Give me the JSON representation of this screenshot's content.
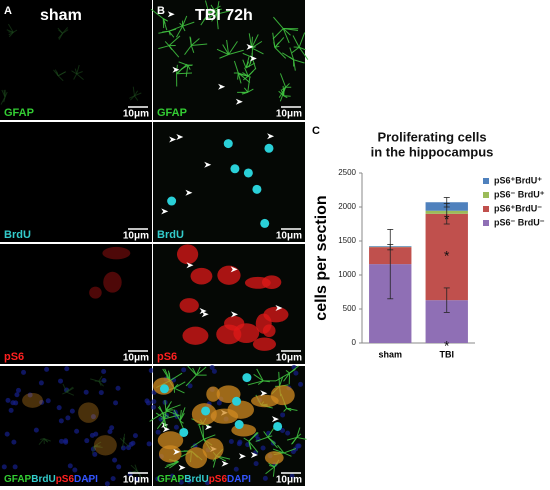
{
  "panels": {
    "A": {
      "label": "A",
      "title": "sham"
    },
    "B": {
      "label": "B",
      "title": "TBI 72h"
    },
    "channels": [
      "GFAP",
      "BrdU",
      "pS6"
    ],
    "merged": [
      {
        "text": "GFAP",
        "color": "#33cc33"
      },
      {
        "text": "BrdU",
        "color": "#33cccc"
      },
      {
        "text": "pS6",
        "color": "#ff2020"
      },
      {
        "text": "DAPI",
        "color": "#3355ff"
      }
    ],
    "channel_colors": [
      "#33cc33",
      "#33cccc",
      "#ff2020"
    ],
    "scale_bar": "10μm"
  },
  "chart_data": {
    "type": "stacked-bar",
    "label": "C",
    "title": [
      "Proliferating cells",
      "in the hippocampus"
    ],
    "ylabel": "cells per section",
    "categories": [
      "sham",
      "TBI"
    ],
    "series": [
      {
        "name": "pS6⁻ BrdU⁻",
        "color": "#8f6fb5",
        "values": [
          1160,
          630
        ],
        "errors": [
          510,
          180
        ],
        "markers": [
          null,
          "*"
        ]
      },
      {
        "name": "pS6⁺BrdU⁻",
        "color": "#c0504d",
        "values": [
          250,
          1270
        ],
        "errors": [
          40,
          150
        ],
        "markers": [
          null,
          "*"
        ]
      },
      {
        "name": "pS6⁻ BrdU⁺",
        "color": "#9bbb59",
        "values": [
          5,
          45
        ],
        "errors": [
          null,
          null
        ],
        "markers": [
          null,
          "*"
        ]
      },
      {
        "name": "pS6⁺BrdU⁺",
        "color": "#4f81bd",
        "values": [
          10,
          125
        ],
        "errors": [
          null,
          70
        ],
        "markers": [
          null,
          null
        ]
      }
    ],
    "ylim": [
      0,
      2500
    ],
    "yticks": [
      0,
      500,
      1000,
      1500,
      2000,
      2500
    ]
  }
}
